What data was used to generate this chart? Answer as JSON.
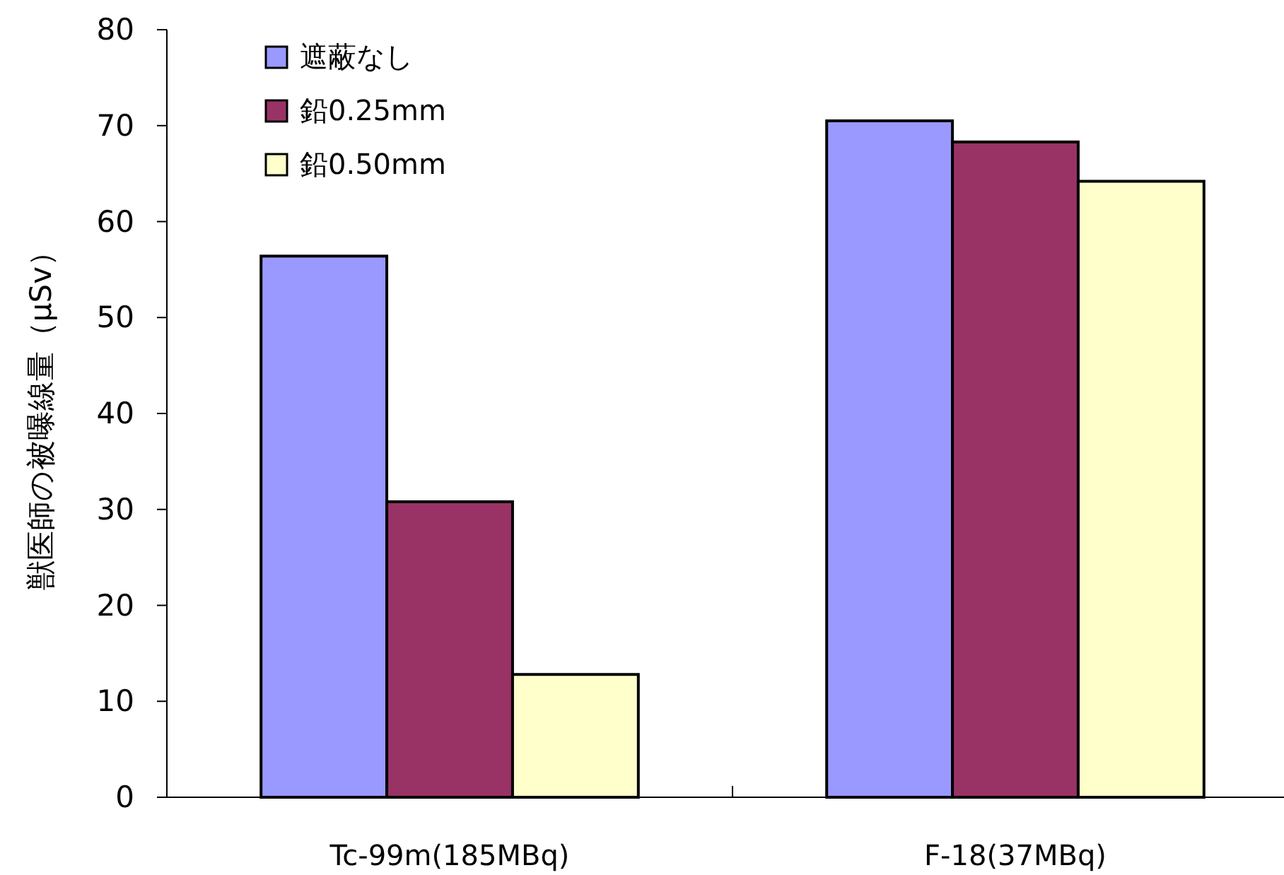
{
  "chart_data": {
    "type": "bar",
    "ylabel": "獣医師の被曝線量（μSv）",
    "categories": [
      "Tc-99m(185MBq)",
      "F-18(37MBq)"
    ],
    "series": [
      {
        "name": "遮蔽なし",
        "color": "#9999ff",
        "values": [
          56.4,
          70.5
        ]
      },
      {
        "name": "鉛0.25mm",
        "color": "#993366",
        "values": [
          30.8,
          68.3
        ]
      },
      {
        "name": "鉛0.50mm",
        "color": "#ffffcc",
        "values": [
          12.8,
          64.2
        ]
      }
    ],
    "ylim": [
      0,
      80
    ],
    "yticks": [
      0,
      10,
      20,
      30,
      40,
      50,
      60,
      70,
      80
    ],
    "legend": "top left"
  }
}
